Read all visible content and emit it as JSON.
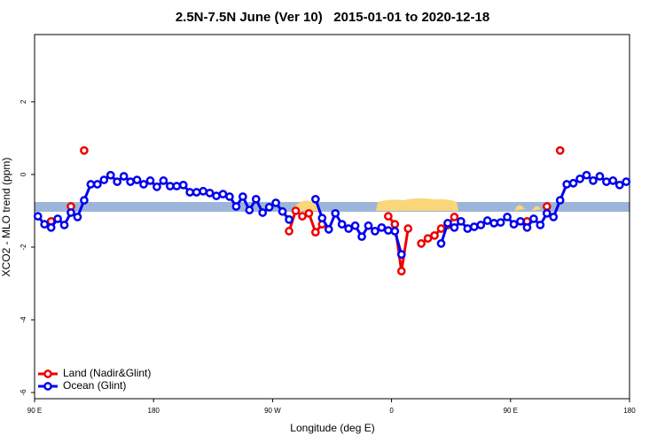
{
  "chart_data": {
    "type": "line",
    "title": "2.5N-7.5N June (Ver 10)   2015-01-01 to 2020-12-18",
    "xlabel": "Longitude (deg E)",
    "ylabel": "XCO2 - MLO trend (ppm)",
    "xlim": [
      90,
      540
    ],
    "ylim": [
      -6.17,
      3.85
    ],
    "xticks": [
      {
        "value": 90,
        "label": "90 E"
      },
      180,
      {
        "value": 270,
        "label": "90 W"
      },
      {
        "value": 360,
        "label": "0"
      },
      {
        "value": 450,
        "label": "90 E"
      },
      {
        "value": 540,
        "label": "180"
      }
    ],
    "yticks": [
      2,
      0,
      -2,
      -4,
      -6
    ],
    "legend": "bottom-left",
    "series": [
      {
        "name": "Land (Nadir&Glint)",
        "color": "#ee0000",
        "x": [
          102.5,
          107.5,
          117.5,
          122.5,
          127.5,
          132.5,
          282.5,
          287.5,
          292.5,
          297.5,
          302.5,
          307.5,
          312.5,
          357.5,
          362.5,
          367.5,
          372.5,
          377.5,
          382.5,
          387.5,
          392.5,
          397.5,
          402.5,
          407.5,
          412.5,
          462.5,
          467.5,
          477.5,
          482.5,
          487.5
        ],
        "values": [
          -1.29,
          null,
          -0.88,
          null,
          0.66,
          null,
          -1.56,
          -1.0,
          -1.15,
          -1.07,
          -1.59,
          -1.37,
          null,
          -1.15,
          -1.37,
          -2.66,
          -1.49,
          null,
          -1.9,
          -1.76,
          -1.68,
          -1.49,
          -1.39,
          -1.17,
          null,
          -1.29,
          null,
          -0.88,
          null,
          0.66
        ]
      },
      {
        "name": "Ocean (Glint)",
        "color": "#0000ee",
        "x": [
          92.5,
          97.5,
          102.5,
          107.5,
          112.5,
          117.5,
          122.5,
          127.5,
          132.5,
          137.5,
          142.5,
          147.5,
          152.5,
          157.5,
          162.5,
          167.5,
          172.5,
          177.5,
          182.5,
          187.5,
          192.5,
          197.5,
          202.5,
          207.5,
          212.5,
          217.5,
          222.5,
          227.5,
          232.5,
          237.5,
          242.5,
          247.5,
          252.5,
          257.5,
          262.5,
          267.5,
          272.5,
          277.5,
          282.5,
          287.5,
          302.5,
          307.5,
          312.5,
          317.5,
          322.5,
          327.5,
          332.5,
          337.5,
          342.5,
          347.5,
          352.5,
          357.5,
          362.5,
          367.5,
          372.5,
          397.5,
          402.5,
          407.5,
          412.5,
          417.5,
          422.5,
          427.5,
          432.5,
          437.5,
          442.5,
          447.5,
          452.5,
          457.5,
          462.5,
          467.5,
          472.5,
          477.5,
          482.5,
          487.5,
          492.5,
          497.5,
          502.5,
          507.5,
          512.5,
          517.5,
          522.5,
          527.5,
          532.5,
          537.5
        ],
        "values": [
          -1.15,
          -1.37,
          -1.46,
          -1.22,
          -1.39,
          -1.05,
          -1.17,
          -0.71,
          -0.27,
          -0.27,
          -0.15,
          -0.02,
          -0.2,
          -0.05,
          -0.2,
          -0.15,
          -0.27,
          -0.17,
          -0.34,
          -0.17,
          -0.32,
          -0.32,
          -0.29,
          -0.49,
          -0.49,
          -0.46,
          -0.51,
          -0.59,
          -0.54,
          -0.61,
          -0.88,
          -0.61,
          -0.98,
          -0.68,
          -1.05,
          -0.9,
          -0.78,
          -1.02,
          -1.24,
          null,
          -0.68,
          -1.2,
          -1.51,
          -1.07,
          -1.37,
          -1.49,
          -1.41,
          -1.71,
          -1.41,
          -1.56,
          -1.46,
          -1.54,
          -1.56,
          -2.2,
          null,
          -1.9,
          -1.34,
          -1.46,
          -1.29,
          -1.49,
          -1.44,
          -1.39,
          -1.27,
          -1.34,
          -1.32,
          -1.17,
          -1.37,
          -1.29,
          -1.46,
          -1.22,
          -1.39,
          -1.07,
          -1.17,
          -0.71,
          -0.27,
          -0.24,
          -0.12,
          -0.02,
          -0.17,
          -0.05,
          -0.2,
          -0.17,
          -0.29,
          -0.2
        ]
      }
    ]
  }
}
